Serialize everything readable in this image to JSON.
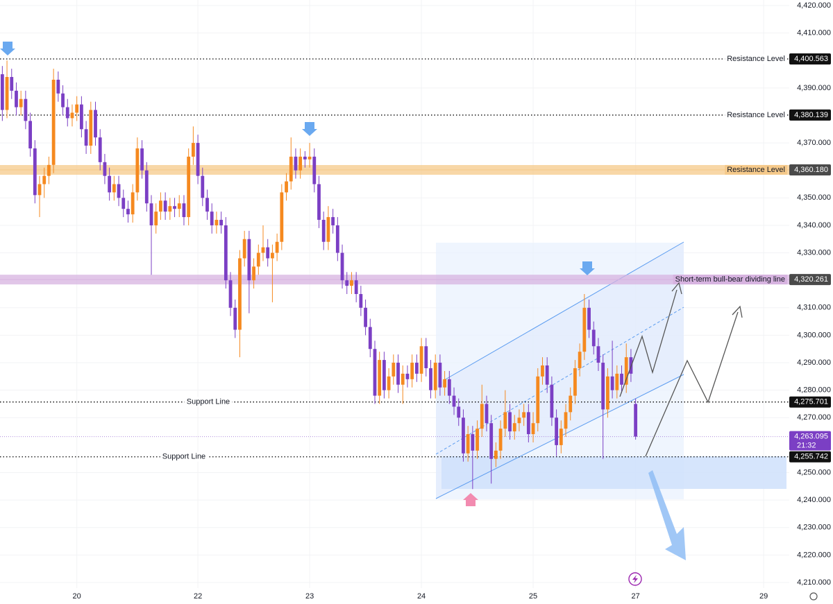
{
  "chart_data": {
    "type": "candlestick",
    "bull_color": "#f5891f",
    "bear_color": "#7b3fc4",
    "ohlc": [
      [
        4395,
        4398,
        4378,
        4382
      ],
      [
        4382,
        4400,
        4379,
        4394
      ],
      [
        4394,
        4397,
        4386,
        4389
      ],
      [
        4389,
        4392,
        4380,
        4383
      ],
      [
        4383,
        4389,
        4380,
        4386
      ],
      [
        4386,
        4389,
        4375,
        4378
      ],
      [
        4378,
        4381,
        4365,
        4368
      ],
      [
        4368,
        4371,
        4348,
        4351
      ],
      [
        4351,
        4358,
        4343,
        4355
      ],
      [
        4355,
        4361,
        4350,
        4358
      ],
      [
        4358,
        4365,
        4355,
        4362
      ],
      [
        4362,
        4397,
        4359,
        4393
      ],
      [
        4393,
        4396,
        4385,
        4388
      ],
      [
        4388,
        4391,
        4380,
        4383
      ],
      [
        4383,
        4386,
        4376,
        4379
      ],
      [
        4379,
        4384,
        4376,
        4381
      ],
      [
        4381,
        4387,
        4378,
        4384
      ],
      [
        4384,
        4387,
        4372,
        4375
      ],
      [
        4375,
        4378,
        4366,
        4369
      ],
      [
        4369,
        4385,
        4366,
        4382
      ],
      [
        4382,
        4385,
        4369,
        4372
      ],
      [
        4372,
        4375,
        4360,
        4363
      ],
      [
        4363,
        4366,
        4355,
        4358
      ],
      [
        4358,
        4361,
        4349,
        4352
      ],
      [
        4352,
        4358,
        4349,
        4355
      ],
      [
        4355,
        4358,
        4347,
        4350
      ],
      [
        4350,
        4353,
        4343,
        4346
      ],
      [
        4346,
        4349,
        4341,
        4344
      ],
      [
        4344,
        4355,
        4341,
        4352
      ],
      [
        4352,
        4372,
        4349,
        4368
      ],
      [
        4368,
        4371,
        4357,
        4360
      ],
      [
        4360,
        4363,
        4345,
        4348
      ],
      [
        4348,
        4351,
        4322,
        4340
      ],
      [
        4340,
        4348,
        4337,
        4345
      ],
      [
        4345,
        4352,
        4342,
        4349
      ],
      [
        4349,
        4352,
        4342,
        4345
      ],
      [
        4345,
        4350,
        4342,
        4347
      ],
      [
        4347,
        4350,
        4343,
        4346
      ],
      [
        4346,
        4351,
        4343,
        4348
      ],
      [
        4348,
        4351,
        4340,
        4343
      ],
      [
        4343,
        4368,
        4340,
        4365
      ],
      [
        4365,
        4376,
        4362,
        4370
      ],
      [
        4370,
        4373,
        4355,
        4358
      ],
      [
        4358,
        4361,
        4347,
        4350
      ],
      [
        4350,
        4353,
        4342,
        4345
      ],
      [
        4345,
        4348,
        4337,
        4340
      ],
      [
        4340,
        4345,
        4337,
        4342
      ],
      [
        4342,
        4345,
        4337,
        4340
      ],
      [
        4340,
        4343,
        4317,
        4320
      ],
      [
        4320,
        4323,
        4307,
        4310
      ],
      [
        4310,
        4313,
        4299,
        4302
      ],
      [
        4302,
        4331,
        4292,
        4328
      ],
      [
        4328,
        4338,
        4325,
        4335
      ],
      [
        4335,
        4338,
        4308,
        4320
      ],
      [
        4320,
        4328,
        4317,
        4325
      ],
      [
        4325,
        4333,
        4322,
        4330
      ],
      [
        4330,
        4340,
        4327,
        4332
      ],
      [
        4332,
        4335,
        4325,
        4328
      ],
      [
        4328,
        4333,
        4312,
        4330
      ],
      [
        4330,
        4337,
        4327,
        4334
      ],
      [
        4334,
        4355,
        4331,
        4352
      ],
      [
        4352,
        4359,
        4349,
        4356
      ],
      [
        4356,
        4372,
        4353,
        4365
      ],
      [
        4365,
        4368,
        4357,
        4360
      ],
      [
        4360,
        4368,
        4357,
        4365
      ],
      [
        4365,
        4367,
        4361,
        4364
      ],
      [
        4364,
        4370,
        4361,
        4365
      ],
      [
        4365,
        4368,
        4352,
        4355
      ],
      [
        4355,
        4358,
        4339,
        4342
      ],
      [
        4342,
        4345,
        4331,
        4334
      ],
      [
        4334,
        4347,
        4331,
        4343
      ],
      [
        4343,
        4346,
        4337,
        4340
      ],
      [
        4340,
        4343,
        4327,
        4330
      ],
      [
        4330,
        4333,
        4317,
        4320
      ],
      [
        4320,
        4323,
        4315,
        4318
      ],
      [
        4318,
        4323,
        4315,
        4320
      ],
      [
        4320,
        4323,
        4312,
        4315
      ],
      [
        4315,
        4318,
        4307,
        4310
      ],
      [
        4310,
        4313,
        4300,
        4303
      ],
      [
        4303,
        4306,
        4292,
        4295
      ],
      [
        4295,
        4298,
        4275,
        4278
      ],
      [
        4278,
        4294,
        4275,
        4291
      ],
      [
        4291,
        4294,
        4277,
        4280
      ],
      [
        4280,
        4288,
        4277,
        4285
      ],
      [
        4285,
        4293,
        4282,
        4290
      ],
      [
        4290,
        4293,
        4279,
        4282
      ],
      [
        4282,
        4289,
        4275,
        4286
      ],
      [
        4286,
        4289,
        4281,
        4284
      ],
      [
        4284,
        4293,
        4281,
        4290
      ],
      [
        4290,
        4293,
        4283,
        4286
      ],
      [
        4286,
        4299,
        4283,
        4296
      ],
      [
        4296,
        4299,
        4285,
        4288
      ],
      [
        4288,
        4291,
        4277,
        4280
      ],
      [
        4280,
        4293,
        4277,
        4290
      ],
      [
        4290,
        4293,
        4278,
        4281
      ],
      [
        4281,
        4287,
        4278,
        4284
      ],
      [
        4284,
        4287,
        4275,
        4278
      ],
      [
        4278,
        4281,
        4271,
        4274
      ],
      [
        4274,
        4277,
        4267,
        4270
      ],
      [
        4270,
        4273,
        4254,
        4257
      ],
      [
        4257,
        4267,
        4254,
        4264
      ],
      [
        4264,
        4267,
        4244,
        4258
      ],
      [
        4258,
        4269,
        4255,
        4266
      ],
      [
        4266,
        4282,
        4263,
        4275
      ],
      [
        4275,
        4278,
        4265,
        4268
      ],
      [
        4268,
        4271,
        4246,
        4255
      ],
      [
        4255,
        4261,
        4252,
        4258
      ],
      [
        4258,
        4269,
        4255,
        4266
      ],
      [
        4266,
        4280,
        4263,
        4272
      ],
      [
        4272,
        4275,
        4262,
        4265
      ],
      [
        4265,
        4271,
        4262,
        4268
      ],
      [
        4268,
        4273,
        4265,
        4270
      ],
      [
        4270,
        4275,
        4267,
        4272
      ],
      [
        4272,
        4275,
        4261,
        4264
      ],
      [
        4264,
        4272,
        4261,
        4268
      ],
      [
        4268,
        4288,
        4265,
        4285
      ],
      [
        4285,
        4292,
        4282,
        4289
      ],
      [
        4289,
        4292,
        4279,
        4282
      ],
      [
        4282,
        4285,
        4267,
        4270
      ],
      [
        4270,
        4273,
        4256,
        4260
      ],
      [
        4260,
        4269,
        4257,
        4266
      ],
      [
        4266,
        4275,
        4263,
        4272
      ],
      [
        4272,
        4281,
        4269,
        4278
      ],
      [
        4278,
        4291,
        4275,
        4288
      ],
      [
        4288,
        4297,
        4285,
        4294
      ],
      [
        4294,
        4315,
        4291,
        4310
      ],
      [
        4310,
        4313,
        4299,
        4302
      ],
      [
        4302,
        4305,
        4293,
        4296
      ],
      [
        4296,
        4299,
        4287,
        4290
      ],
      [
        4290,
        4293,
        4255,
        4273
      ],
      [
        4273,
        4288,
        4270,
        4285
      ],
      [
        4285,
        4298,
        4277,
        4280
      ],
      [
        4280,
        4289,
        4277,
        4286
      ],
      [
        4286,
        4289,
        4279,
        4282
      ],
      [
        4282,
        4297,
        4279,
        4292
      ],
      [
        4292,
        4295,
        4283,
        4286
      ],
      [
        4275,
        4277,
        4262,
        4263.095
      ]
    ],
    "xlim": [
      -0.5,
      169
    ],
    "xticks": [
      {
        "value": 16,
        "label": "20"
      },
      {
        "value": 42,
        "label": "22"
      },
      {
        "value": 66,
        "label": "23"
      },
      {
        "value": 90,
        "label": "24"
      },
      {
        "value": 114,
        "label": "25"
      },
      {
        "value": 136,
        "label": "27"
      },
      {
        "value": 163.5,
        "label": "29"
      }
    ],
    "ylim": [
      4210,
      4420
    ],
    "yticks": [
      {
        "value": 4420,
        "label": "4,420.000"
      },
      {
        "value": 4410,
        "label": "4,410.000"
      },
      {
        "value": 4390,
        "label": "4,390.000"
      },
      {
        "value": 4370,
        "label": "4,370.000"
      },
      {
        "value": 4350,
        "label": "4,350.000"
      },
      {
        "value": 4340,
        "label": "4,340.000"
      },
      {
        "value": 4330,
        "label": "4,330.000"
      },
      {
        "value": 4310,
        "label": "4,310.000"
      },
      {
        "value": 4300,
        "label": "4,300.000"
      },
      {
        "value": 4290,
        "label": "4,290.000"
      },
      {
        "value": 4280,
        "label": "4,280.000"
      },
      {
        "value": 4270,
        "label": "4,270.000"
      },
      {
        "value": 4250,
        "label": "4,250.000"
      },
      {
        "value": 4240,
        "label": "4,240.000"
      },
      {
        "value": 4230,
        "label": "4,230.000"
      },
      {
        "value": 4220,
        "label": "4,220.000"
      },
      {
        "value": 4210,
        "label": "4,210.000"
      }
    ],
    "grid": true,
    "levels": [
      {
        "label": "Resistance Level",
        "value": 4400.563,
        "tag": "4,400.563",
        "style": "dotted",
        "label_position": "right"
      },
      {
        "label": "Resistance Level",
        "value": 4380.139,
        "tag": "4,380.139",
        "style": "dotted",
        "label_position": "right"
      },
      {
        "label": "Resistance Level",
        "value": 4360.18,
        "tag": "4,360.180",
        "style": "band",
        "color": "#f5c98a",
        "label_position": "right"
      },
      {
        "label": "Short-term bull-bear dividing line",
        "value": 4320.261,
        "tag": "4,320.261",
        "style": "band",
        "color": "#d7b3e0",
        "label_position": "right"
      },
      {
        "label": "Support Line",
        "value": 4275.701,
        "tag": "4,275.701",
        "style": "dotted",
        "label_position": "left"
      },
      {
        "label": "Support Line",
        "value": 4255.742,
        "tag": "4,255.742",
        "style": "dotted",
        "label_position": "left"
      }
    ],
    "current_price": {
      "value": 4263.095,
      "tag": "4,263.095",
      "time": "21:32",
      "color": "#7b3fc4"
    }
  }
}
